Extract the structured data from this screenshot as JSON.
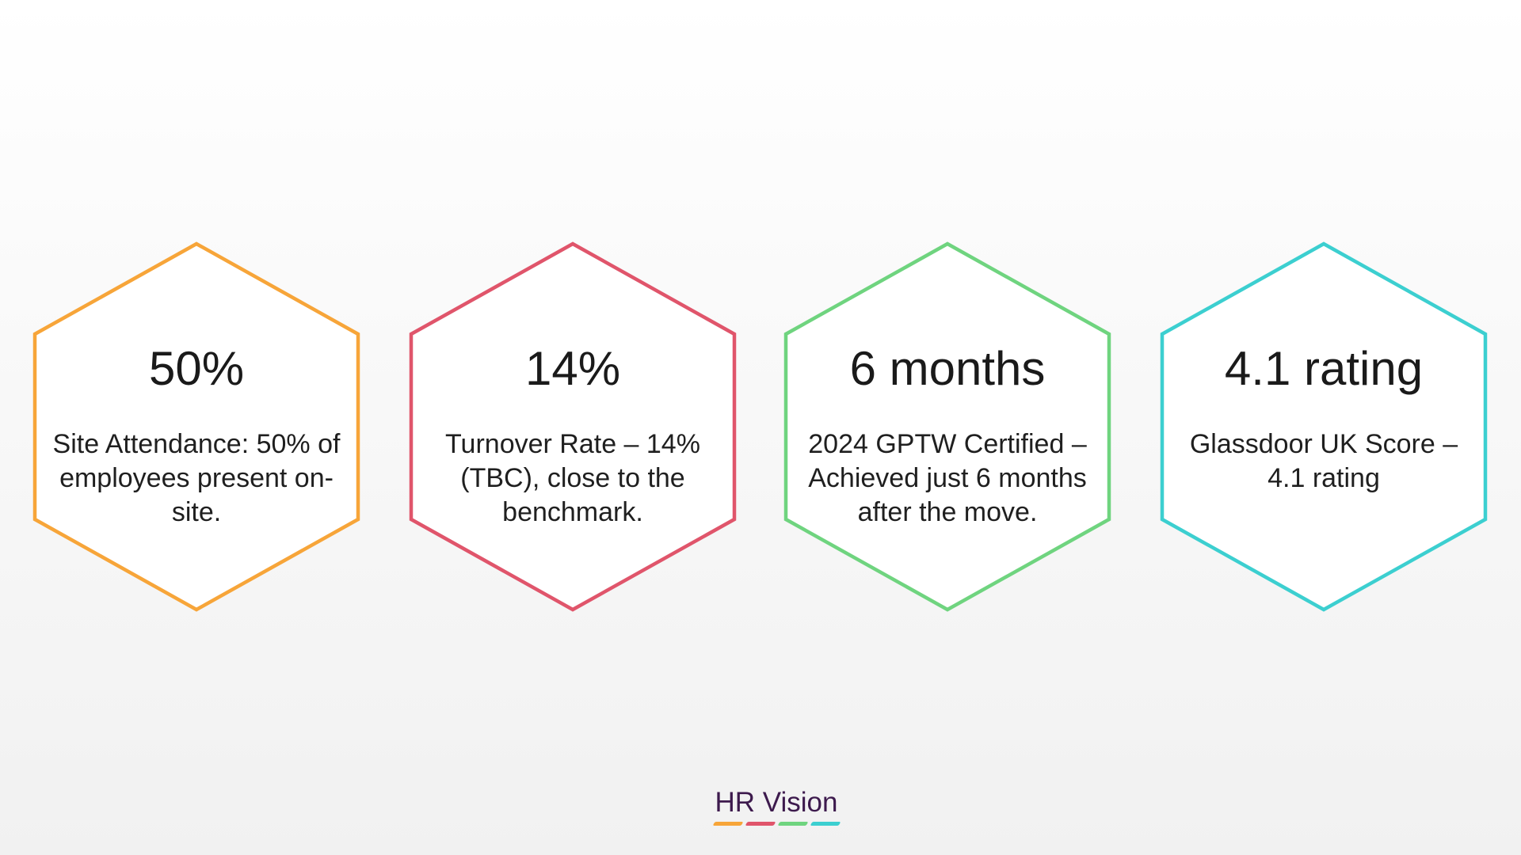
{
  "cards": [
    {
      "value": "50%",
      "description": "Site Attendance: 50% of employees present on-site.",
      "color": "#f7a539"
    },
    {
      "value": "14%",
      "description": "Turnover Rate – 14% (TBC), close to the benchmark.",
      "color": "#e0556b"
    },
    {
      "value": "6 months",
      "description": "2024 GPTW Certified – Achieved just 6 months after the move.",
      "color": "#6fd47f"
    },
    {
      "value": "4.1 rating",
      "description": "Glassdoor UK Score – 4.1 rating",
      "color": "#3ccfd0"
    }
  ],
  "logo": {
    "text": "HR Vision",
    "text_color": "#3d1a4d",
    "bar_colors": [
      "#f7a539",
      "#e0556b",
      "#6fd47f",
      "#3ccfd0"
    ]
  }
}
